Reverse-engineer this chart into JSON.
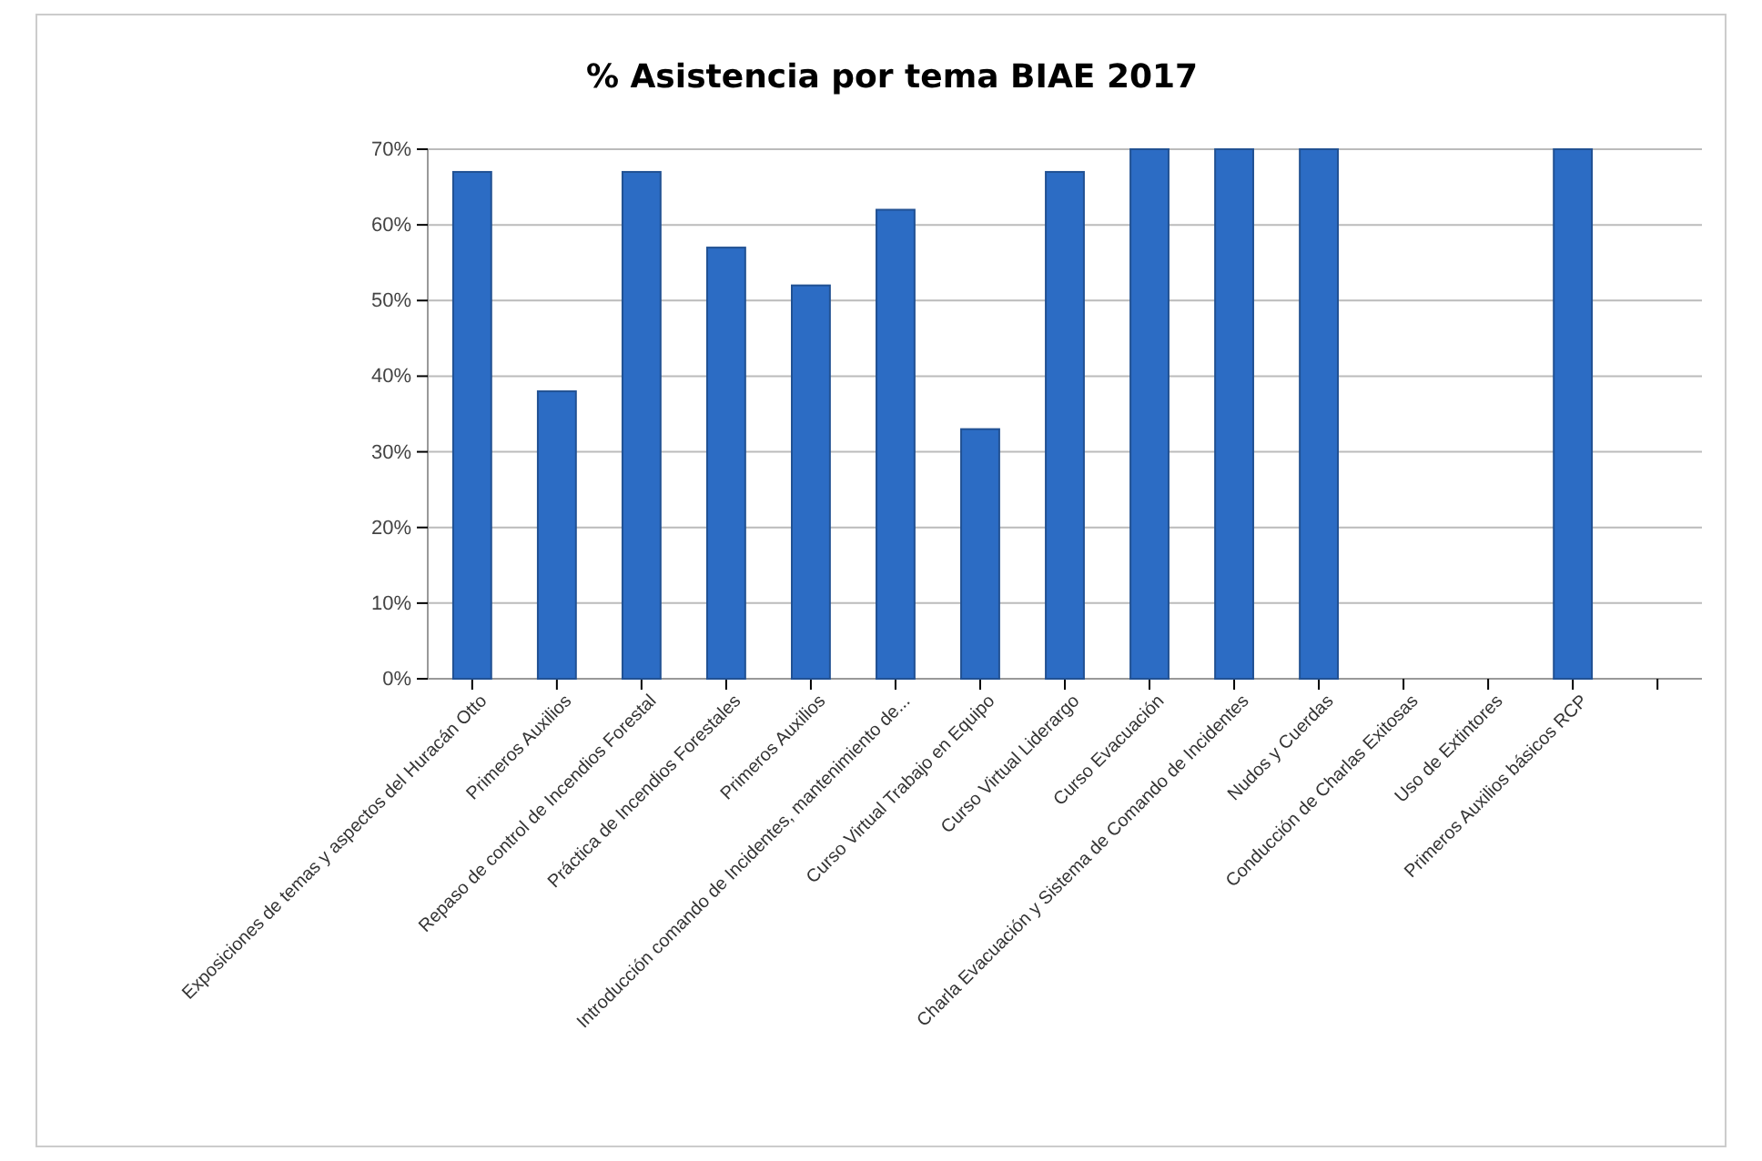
{
  "chart_data": {
    "type": "bar",
    "title": "%  Asistencia por tema BIAE  2017",
    "categories": [
      "Exposiciones de temas  y aspectos  del Huracán Otto",
      "Primeros Auxilios",
      "Repaso de control de Incendios Forestal",
      "Práctica de Incendios Forestales",
      "Primeros Auxilios",
      "Introducción comando de Incidentes,  mantenimiento de...",
      "Curso Virtual Trabajo en Equipo",
      "Curso Virtual Liderargo",
      "Curso Evacuación",
      "Charla Evacuación y Sistema de Comando de Incidentes",
      "Nudos y Cuerdas",
      "Conducción de Charlas Exitosas",
      "Uso de Extintores",
      "Primeros Auxilios básicos RCP",
      null
    ],
    "values": [
      67,
      38,
      67,
      57,
      52,
      62,
      33,
      67,
      70,
      70,
      70,
      0,
      0,
      70,
      0
    ],
    "color": "#2c6cc4",
    "ylim": [
      0,
      70
    ],
    "yticks": [
      {
        "value": 0,
        "label": "0%"
      },
      {
        "value": 10,
        "label": "10%"
      },
      {
        "value": 20,
        "label": "20%"
      },
      {
        "value": 30,
        "label": "30%"
      },
      {
        "value": 40,
        "label": "40%"
      },
      {
        "value": 50,
        "label": "50%"
      },
      {
        "value": 60,
        "label": "60%"
      },
      {
        "value": 70,
        "label": "70%"
      }
    ],
    "grid": true
  }
}
